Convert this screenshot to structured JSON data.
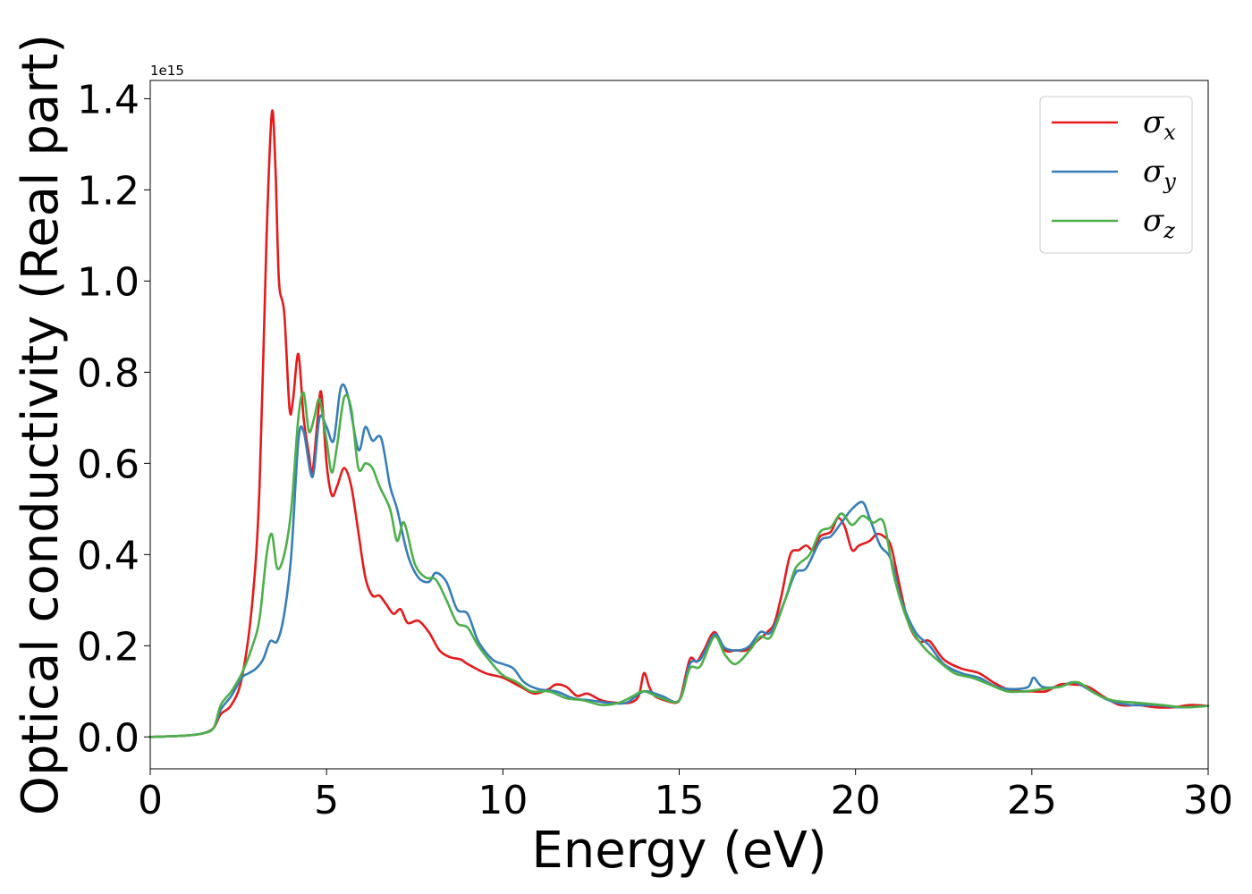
{
  "chart_data": {
    "type": "line",
    "title": "",
    "xlabel": "Energy (eV)",
    "ylabel": "Optical conductivity (Real part)",
    "y_offset_text": "1e15",
    "y_multiplier": 1000000000000000.0,
    "xlim": [
      0,
      30
    ],
    "ylim": [
      -0.07,
      1.44
    ],
    "x_ticks": [
      0,
      5,
      10,
      15,
      20,
      25,
      30
    ],
    "y_ticks": [
      0.0,
      0.2,
      0.4,
      0.6,
      0.8,
      1.0,
      1.2,
      1.4
    ],
    "y_tick_labels": [
      "0.0",
      "0.2",
      "0.4",
      "0.6",
      "0.8",
      "1.0",
      "1.2",
      "1.4"
    ],
    "grid": false,
    "legend_position": "top-right",
    "series": [
      {
        "name": "σx",
        "symbol": "σ",
        "subscript": "x",
        "color": "#e41a1c",
        "points": [
          [
            0,
            0
          ],
          [
            1,
            0.003
          ],
          [
            1.5,
            0.008
          ],
          [
            1.8,
            0.02
          ],
          [
            2,
            0.05
          ],
          [
            2.3,
            0.07
          ],
          [
            2.6,
            0.13
          ],
          [
            2.9,
            0.3
          ],
          [
            3.1,
            0.55
          ],
          [
            3.3,
            1.1
          ],
          [
            3.45,
            1.37
          ],
          [
            3.55,
            1.25
          ],
          [
            3.65,
            1.0
          ],
          [
            3.8,
            0.93
          ],
          [
            3.95,
            0.72
          ],
          [
            4.05,
            0.74
          ],
          [
            4.2,
            0.84
          ],
          [
            4.35,
            0.7
          ],
          [
            4.5,
            0.62
          ],
          [
            4.6,
            0.58
          ],
          [
            4.75,
            0.7
          ],
          [
            4.85,
            0.755
          ],
          [
            5.0,
            0.6
          ],
          [
            5.15,
            0.53
          ],
          [
            5.3,
            0.55
          ],
          [
            5.5,
            0.59
          ],
          [
            5.7,
            0.55
          ],
          [
            5.9,
            0.45
          ],
          [
            6.1,
            0.35
          ],
          [
            6.3,
            0.31
          ],
          [
            6.5,
            0.31
          ],
          [
            6.7,
            0.29
          ],
          [
            6.9,
            0.27
          ],
          [
            7.1,
            0.28
          ],
          [
            7.3,
            0.25
          ],
          [
            7.6,
            0.255
          ],
          [
            7.9,
            0.23
          ],
          [
            8.2,
            0.19
          ],
          [
            8.5,
            0.175
          ],
          [
            8.8,
            0.17
          ],
          [
            9.0,
            0.16
          ],
          [
            9.5,
            0.14
          ],
          [
            10,
            0.13
          ],
          [
            10.5,
            0.11
          ],
          [
            10.9,
            0.095
          ],
          [
            11.3,
            0.105
          ],
          [
            11.5,
            0.115
          ],
          [
            11.8,
            0.11
          ],
          [
            12.1,
            0.09
          ],
          [
            12.4,
            0.095
          ],
          [
            12.8,
            0.08
          ],
          [
            13.2,
            0.075
          ],
          [
            13.6,
            0.075
          ],
          [
            13.85,
            0.09
          ],
          [
            14.0,
            0.14
          ],
          [
            14.15,
            0.11
          ],
          [
            14.3,
            0.09
          ],
          [
            14.6,
            0.08
          ],
          [
            14.9,
            0.075
          ],
          [
            15.05,
            0.09
          ],
          [
            15.3,
            0.17
          ],
          [
            15.5,
            0.165
          ],
          [
            15.7,
            0.19
          ],
          [
            16.0,
            0.23
          ],
          [
            16.3,
            0.19
          ],
          [
            16.6,
            0.19
          ],
          [
            16.9,
            0.19
          ],
          [
            17.2,
            0.21
          ],
          [
            17.5,
            0.23
          ],
          [
            17.7,
            0.25
          ],
          [
            17.9,
            0.31
          ],
          [
            18.15,
            0.4
          ],
          [
            18.4,
            0.41
          ],
          [
            18.6,
            0.42
          ],
          [
            18.8,
            0.41
          ],
          [
            19.0,
            0.44
          ],
          [
            19.3,
            0.45
          ],
          [
            19.5,
            0.48
          ],
          [
            19.7,
            0.46
          ],
          [
            19.9,
            0.41
          ],
          [
            20.1,
            0.42
          ],
          [
            20.4,
            0.43
          ],
          [
            20.6,
            0.445
          ],
          [
            20.8,
            0.44
          ],
          [
            21.0,
            0.42
          ],
          [
            21.2,
            0.35
          ],
          [
            21.5,
            0.25
          ],
          [
            21.8,
            0.21
          ],
          [
            22.1,
            0.21
          ],
          [
            22.5,
            0.17
          ],
          [
            23.0,
            0.15
          ],
          [
            23.5,
            0.14
          ],
          [
            23.9,
            0.12
          ],
          [
            24.3,
            0.105
          ],
          [
            24.7,
            0.1
          ],
          [
            25.0,
            0.1
          ],
          [
            25.4,
            0.1
          ],
          [
            25.8,
            0.115
          ],
          [
            26.2,
            0.115
          ],
          [
            26.6,
            0.11
          ],
          [
            27.0,
            0.09
          ],
          [
            27.5,
            0.07
          ],
          [
            28.0,
            0.07
          ],
          [
            28.5,
            0.065
          ],
          [
            29.0,
            0.065
          ],
          [
            29.5,
            0.07
          ],
          [
            30,
            0.068
          ]
        ]
      },
      {
        "name": "σy",
        "symbol": "σ",
        "subscript": "y",
        "color": "#377eb8",
        "points": [
          [
            0,
            0
          ],
          [
            1,
            0.003
          ],
          [
            1.5,
            0.008
          ],
          [
            1.8,
            0.02
          ],
          [
            2,
            0.06
          ],
          [
            2.3,
            0.09
          ],
          [
            2.6,
            0.13
          ],
          [
            2.8,
            0.14
          ],
          [
            3.0,
            0.15
          ],
          [
            3.2,
            0.17
          ],
          [
            3.4,
            0.21
          ],
          [
            3.6,
            0.21
          ],
          [
            3.8,
            0.27
          ],
          [
            4.0,
            0.4
          ],
          [
            4.2,
            0.65
          ],
          [
            4.35,
            0.67
          ],
          [
            4.6,
            0.57
          ],
          [
            4.8,
            0.7
          ],
          [
            5.0,
            0.68
          ],
          [
            5.2,
            0.65
          ],
          [
            5.4,
            0.765
          ],
          [
            5.6,
            0.75
          ],
          [
            5.9,
            0.63
          ],
          [
            6.1,
            0.68
          ],
          [
            6.3,
            0.65
          ],
          [
            6.55,
            0.655
          ],
          [
            6.8,
            0.55
          ],
          [
            7.0,
            0.5
          ],
          [
            7.3,
            0.4
          ],
          [
            7.6,
            0.35
          ],
          [
            7.9,
            0.34
          ],
          [
            8.1,
            0.36
          ],
          [
            8.4,
            0.34
          ],
          [
            8.7,
            0.28
          ],
          [
            9.0,
            0.27
          ],
          [
            9.3,
            0.21
          ],
          [
            9.7,
            0.17
          ],
          [
            10,
            0.16
          ],
          [
            10.3,
            0.15
          ],
          [
            10.6,
            0.12
          ],
          [
            11.0,
            0.105
          ],
          [
            11.5,
            0.1
          ],
          [
            12.0,
            0.085
          ],
          [
            12.5,
            0.08
          ],
          [
            13.0,
            0.075
          ],
          [
            13.5,
            0.075
          ],
          [
            14.0,
            0.1
          ],
          [
            14.5,
            0.09
          ],
          [
            15.0,
            0.08
          ],
          [
            15.3,
            0.16
          ],
          [
            15.6,
            0.17
          ],
          [
            16.0,
            0.225
          ],
          [
            16.3,
            0.195
          ],
          [
            16.7,
            0.19
          ],
          [
            17.0,
            0.2
          ],
          [
            17.3,
            0.23
          ],
          [
            17.6,
            0.23
          ],
          [
            18.0,
            0.3
          ],
          [
            18.3,
            0.36
          ],
          [
            18.6,
            0.37
          ],
          [
            19.0,
            0.43
          ],
          [
            19.3,
            0.44
          ],
          [
            19.6,
            0.47
          ],
          [
            19.9,
            0.5
          ],
          [
            20.2,
            0.515
          ],
          [
            20.4,
            0.48
          ],
          [
            20.7,
            0.42
          ],
          [
            21.0,
            0.39
          ],
          [
            21.3,
            0.3
          ],
          [
            21.7,
            0.23
          ],
          [
            22.1,
            0.2
          ],
          [
            22.5,
            0.16
          ],
          [
            23.0,
            0.14
          ],
          [
            23.5,
            0.13
          ],
          [
            24.0,
            0.11
          ],
          [
            24.5,
            0.105
          ],
          [
            24.9,
            0.11
          ],
          [
            25.05,
            0.13
          ],
          [
            25.3,
            0.11
          ],
          [
            25.8,
            0.11
          ],
          [
            26.2,
            0.12
          ],
          [
            26.7,
            0.1
          ],
          [
            27.2,
            0.08
          ],
          [
            27.8,
            0.07
          ],
          [
            28.5,
            0.07
          ],
          [
            29.2,
            0.065
          ],
          [
            30,
            0.068
          ]
        ]
      },
      {
        "name": "σz",
        "symbol": "σ",
        "subscript": "z",
        "color": "#4daf4a",
        "points": [
          [
            0,
            0
          ],
          [
            1,
            0.003
          ],
          [
            1.5,
            0.008
          ],
          [
            1.8,
            0.02
          ],
          [
            2,
            0.07
          ],
          [
            2.3,
            0.1
          ],
          [
            2.6,
            0.14
          ],
          [
            2.9,
            0.2
          ],
          [
            3.1,
            0.26
          ],
          [
            3.3,
            0.4
          ],
          [
            3.45,
            0.445
          ],
          [
            3.6,
            0.37
          ],
          [
            3.8,
            0.4
          ],
          [
            4.0,
            0.5
          ],
          [
            4.2,
            0.7
          ],
          [
            4.35,
            0.755
          ],
          [
            4.5,
            0.67
          ],
          [
            4.65,
            0.7
          ],
          [
            4.8,
            0.74
          ],
          [
            5.0,
            0.65
          ],
          [
            5.15,
            0.58
          ],
          [
            5.3,
            0.64
          ],
          [
            5.5,
            0.745
          ],
          [
            5.7,
            0.72
          ],
          [
            5.9,
            0.59
          ],
          [
            6.1,
            0.6
          ],
          [
            6.3,
            0.59
          ],
          [
            6.5,
            0.55
          ],
          [
            6.8,
            0.5
          ],
          [
            7.0,
            0.43
          ],
          [
            7.2,
            0.47
          ],
          [
            7.5,
            0.38
          ],
          [
            7.8,
            0.35
          ],
          [
            8.1,
            0.345
          ],
          [
            8.4,
            0.3
          ],
          [
            8.7,
            0.25
          ],
          [
            9.0,
            0.24
          ],
          [
            9.3,
            0.2
          ],
          [
            9.7,
            0.16
          ],
          [
            10.0,
            0.135
          ],
          [
            10.4,
            0.12
          ],
          [
            10.8,
            0.1
          ],
          [
            11.3,
            0.1
          ],
          [
            11.8,
            0.085
          ],
          [
            12.3,
            0.08
          ],
          [
            12.8,
            0.07
          ],
          [
            13.3,
            0.075
          ],
          [
            13.7,
            0.09
          ],
          [
            14.0,
            0.1
          ],
          [
            14.5,
            0.085
          ],
          [
            15.0,
            0.08
          ],
          [
            15.3,
            0.15
          ],
          [
            15.6,
            0.155
          ],
          [
            16.0,
            0.22
          ],
          [
            16.3,
            0.18
          ],
          [
            16.6,
            0.16
          ],
          [
            17.0,
            0.19
          ],
          [
            17.3,
            0.22
          ],
          [
            17.6,
            0.22
          ],
          [
            18.0,
            0.3
          ],
          [
            18.3,
            0.37
          ],
          [
            18.7,
            0.4
          ],
          [
            19.0,
            0.45
          ],
          [
            19.3,
            0.46
          ],
          [
            19.6,
            0.49
          ],
          [
            19.9,
            0.465
          ],
          [
            20.2,
            0.485
          ],
          [
            20.5,
            0.47
          ],
          [
            20.8,
            0.47
          ],
          [
            21.1,
            0.35
          ],
          [
            21.5,
            0.25
          ],
          [
            21.9,
            0.2
          ],
          [
            22.3,
            0.17
          ],
          [
            22.8,
            0.14
          ],
          [
            23.3,
            0.13
          ],
          [
            23.8,
            0.115
          ],
          [
            24.3,
            0.1
          ],
          [
            24.8,
            0.1
          ],
          [
            25.3,
            0.105
          ],
          [
            25.8,
            0.11
          ],
          [
            26.3,
            0.12
          ],
          [
            26.8,
            0.095
          ],
          [
            27.3,
            0.08
          ],
          [
            28.0,
            0.075
          ],
          [
            28.7,
            0.07
          ],
          [
            29.3,
            0.065
          ],
          [
            30,
            0.068
          ]
        ]
      }
    ]
  }
}
